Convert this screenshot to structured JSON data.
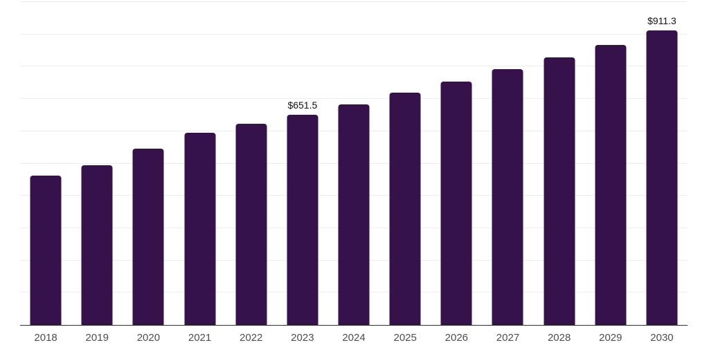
{
  "chart_data": {
    "type": "bar",
    "title": "",
    "xlabel": "",
    "ylabel": "",
    "categories": [
      "2018",
      "2019",
      "2020",
      "2021",
      "2022",
      "2023",
      "2024",
      "2025",
      "2026",
      "2027",
      "2028",
      "2029",
      "2030"
    ],
    "values": [
      462,
      494,
      546,
      595,
      623,
      651.5,
      683,
      719,
      754,
      792,
      828,
      868,
      911.3
    ],
    "data_labels": {
      "2023": "$651.5",
      "2030": "$911.3"
    },
    "ylim": [
      0,
      1000
    ],
    "gridline_step": 100,
    "grid": "horizontal-only",
    "legend_position": "none",
    "y_axis_tick_labels_visible": false
  },
  "colors": {
    "bar": "#351249",
    "gridline": "#ededed",
    "axis_line": "#2e2e2e",
    "x_tick_label": "#4d4d4d",
    "data_label": "#111111",
    "background": "#ffffff"
  }
}
